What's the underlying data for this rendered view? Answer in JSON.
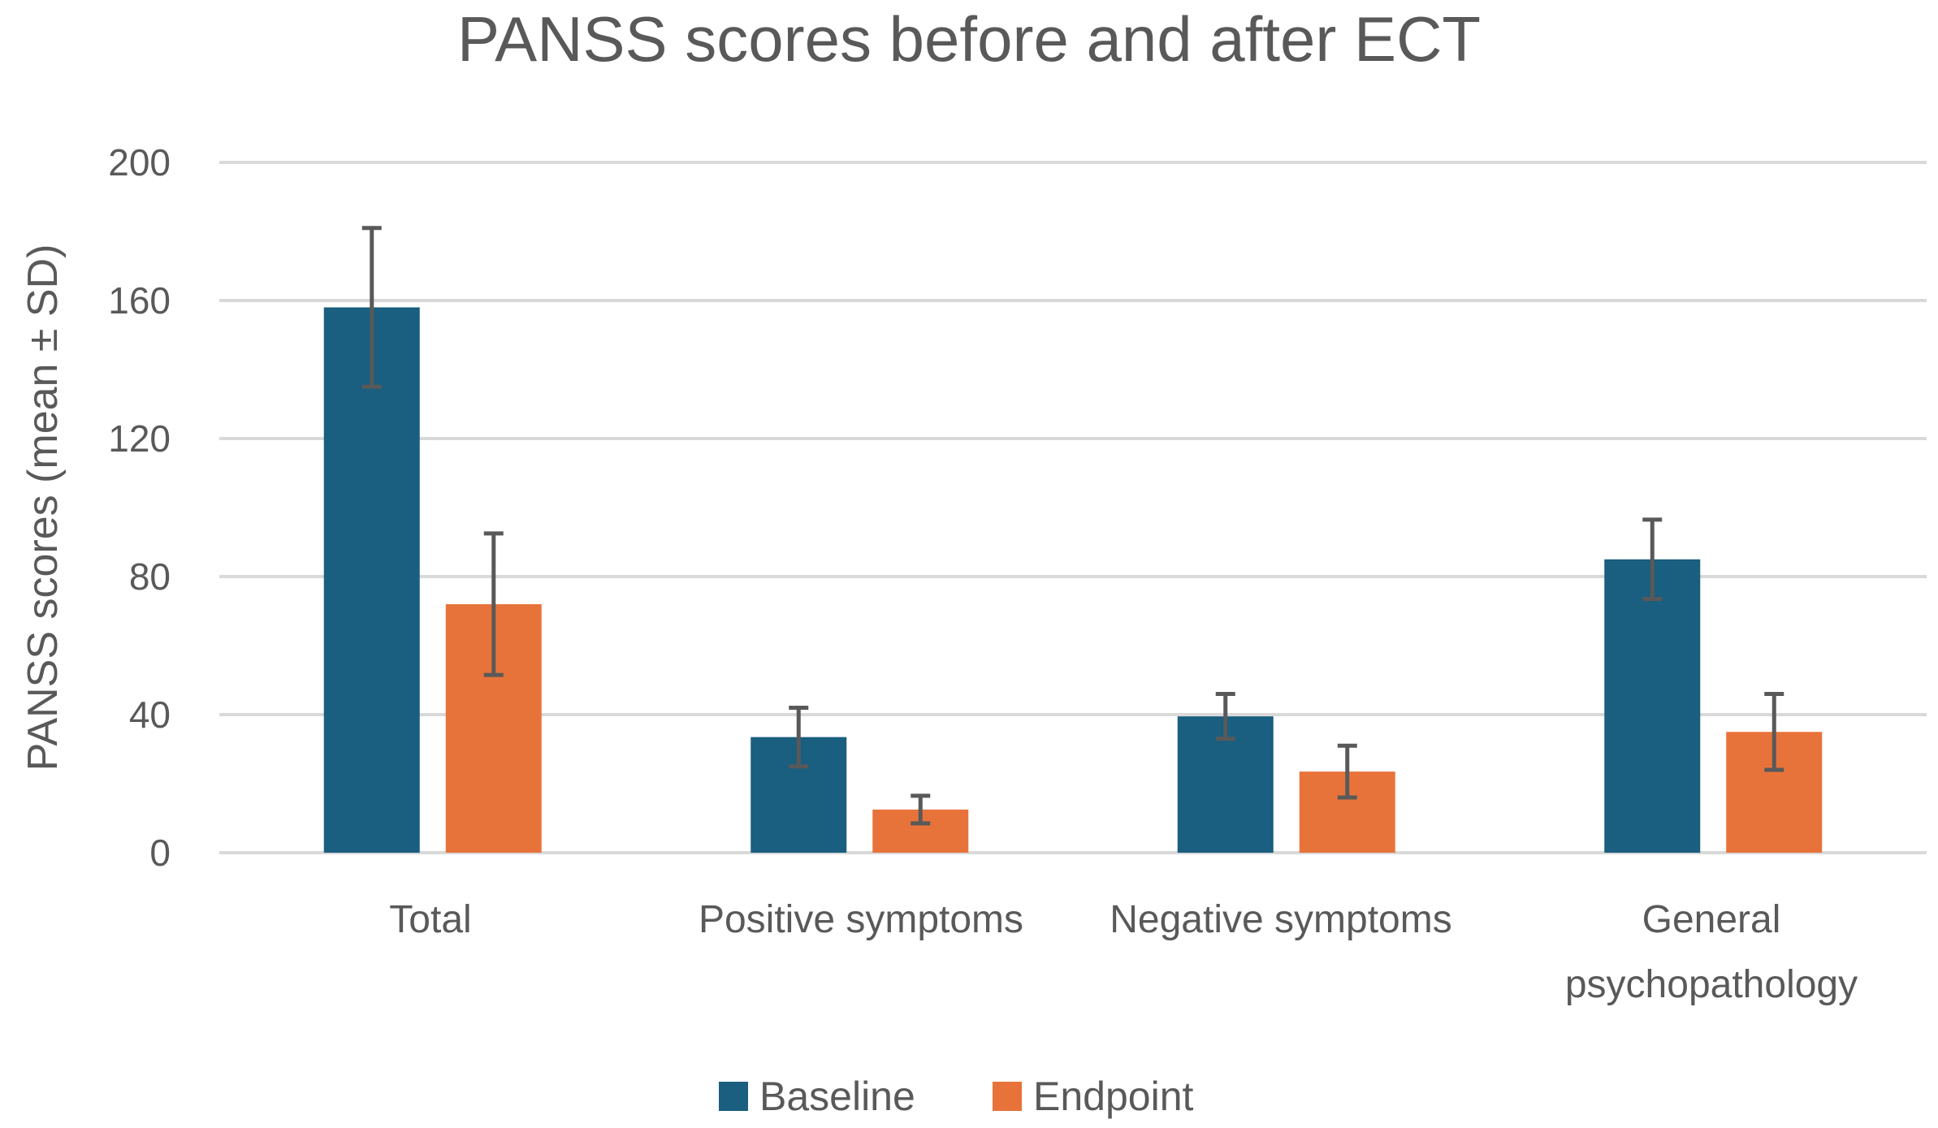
{
  "chart_data": {
    "type": "bar",
    "title": "PANSS scores before and after ECT",
    "xlabel": "",
    "ylabel": "PANSS scores (mean ± SD)",
    "ylim": [
      0,
      200
    ],
    "yticks": [
      0,
      40,
      80,
      120,
      160,
      200
    ],
    "grid": true,
    "legend_position": "bottom",
    "categories": [
      [
        "Total"
      ],
      [
        "Positive symptoms"
      ],
      [
        "Negative symptoms"
      ],
      [
        "General",
        "psychopathology"
      ]
    ],
    "series": [
      {
        "name": "Baseline",
        "color": "#1a5e80",
        "values": [
          158,
          33.5,
          39.5,
          85
        ],
        "sd": [
          23,
          8.5,
          6.5,
          11.5
        ]
      },
      {
        "name": "Endpoint",
        "color": "#e8733a",
        "values": [
          72,
          12.5,
          23.5,
          35
        ],
        "sd": [
          20.5,
          4,
          7.5,
          11
        ]
      }
    ]
  }
}
